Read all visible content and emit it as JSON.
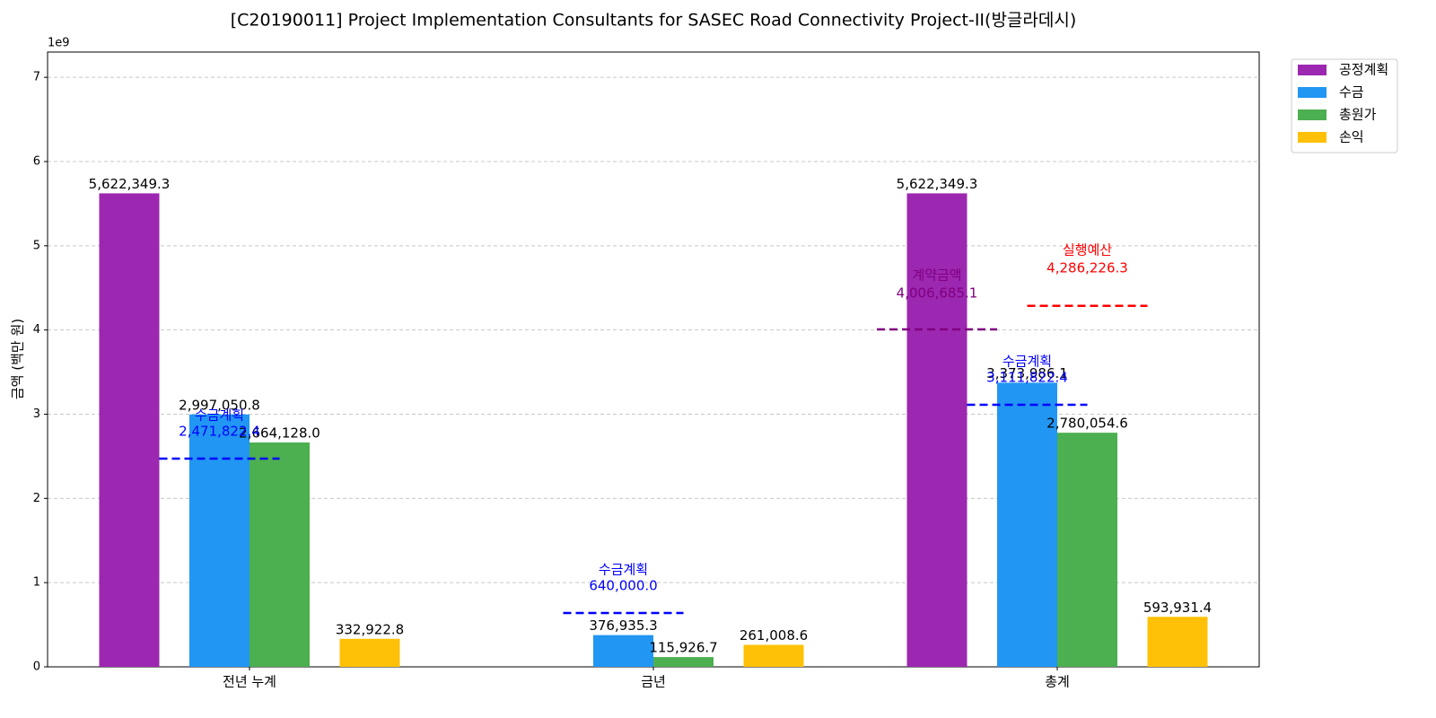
{
  "chart_data": {
    "type": "bar",
    "title": "[C20190011] Project Implementation Consultants for SASEC Road Connectivity Project-II(방글라데시)",
    "y_label": "금액 (백만 원)",
    "y_offset_label": "1e9",
    "categories": [
      "전년 누계",
      "금년",
      "총계"
    ],
    "series": [
      {
        "name": "공정계획",
        "color": "#9c27b0",
        "values": [
          5622349300,
          null,
          5622349300
        ],
        "value_labels": [
          "5,622,349.3",
          null,
          "5,622,349.3"
        ]
      },
      {
        "name": "수금",
        "color": "#2196f3",
        "values": [
          2997050800,
          376935300,
          3373986100
        ],
        "value_labels": [
          "2,997,050.8",
          "376,935.3",
          "3,373,986.1"
        ]
      },
      {
        "name": "총원가",
        "color": "#4caf50",
        "values": [
          2664128000,
          115926700,
          2780054600
        ],
        "value_labels": [
          "2,664,128.0",
          "115,926.7",
          "2,780,054.6"
        ]
      },
      {
        "name": "손익",
        "color": "#ffc107",
        "values": [
          332922800,
          261008600,
          593931400
        ],
        "value_labels": [
          "332,922.8",
          "261,008.6",
          "593,931.4"
        ]
      }
    ],
    "reference_lines": [
      {
        "name": "수금계획",
        "color": "#0000ff",
        "values": [
          2471822400,
          640000000,
          3111822400
        ],
        "value_labels": [
          "2,471,822.4",
          "640,000.0",
          "3,111,822.4"
        ]
      },
      {
        "name": "계약금액",
        "color": "#800080",
        "values": [
          null,
          null,
          4006685100
        ],
        "value_labels": [
          null,
          null,
          "4,006,685.1"
        ]
      },
      {
        "name": "실행예산",
        "color": "#ff0000",
        "values": [
          null,
          null,
          4286226300
        ],
        "value_labels": [
          null,
          null,
          "4,286,226.3"
        ]
      }
    ],
    "ylim": [
      0,
      7300000000
    ],
    "yticks": [
      {
        "value": 0,
        "label": "0"
      },
      {
        "value": 1000000000,
        "label": "1"
      },
      {
        "value": 2000000000,
        "label": "2"
      },
      {
        "value": 3000000000,
        "label": "3"
      },
      {
        "value": 4000000000,
        "label": "4"
      },
      {
        "value": 5000000000,
        "label": "5"
      },
      {
        "value": 6000000000,
        "label": "6"
      },
      {
        "value": 7000000000,
        "label": "7"
      }
    ],
    "grid": true,
    "legend": "outside upper right"
  }
}
